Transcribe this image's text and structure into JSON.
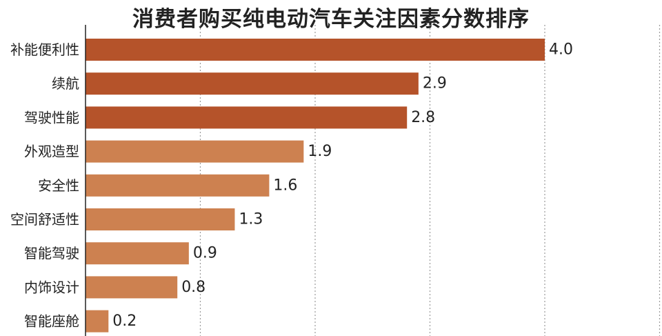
{
  "chart_data": {
    "type": "bar",
    "orientation": "horizontal",
    "title": "消费者购买纯电动汽车关注因素分数排序",
    "xlabel": "",
    "ylabel": "",
    "xlim": [
      0,
      5
    ],
    "grid": true,
    "categories": [
      "补能便利性",
      "续航",
      "驾驶性能",
      "外观造型",
      "安全性",
      "空间舒适性",
      "智能驾驶",
      "内饰设计",
      "智能座舱"
    ],
    "values": [
      4.0,
      2.9,
      2.8,
      1.9,
      1.6,
      1.3,
      0.9,
      0.8,
      0.2
    ],
    "value_labels": [
      "4.0",
      "2.9",
      "2.8",
      "1.9",
      "1.6",
      "1.3",
      "0.9",
      "0.8",
      "0.2"
    ],
    "bar_colors": [
      "#b5532a",
      "#b5532a",
      "#b5532a",
      "#cd8150",
      "#cd8150",
      "#cd8150",
      "#cd8150",
      "#cd8150",
      "#cd8150"
    ]
  }
}
